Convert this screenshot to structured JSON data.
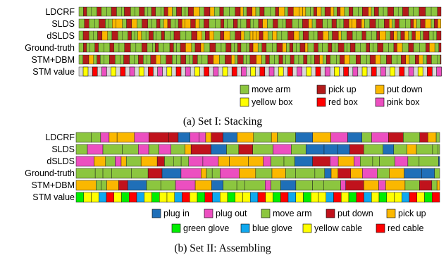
{
  "chart_data": [
    {
      "type": "heatmap",
      "caption": "(a) Set I: Stacking",
      "rows": [
        "LDCRF",
        "SLDS",
        "dSLDS",
        "Ground-truth",
        "STM+DBM",
        "STM value"
      ],
      "legend": [
        {
          "key": "move_arm",
          "label": "move arm",
          "color": "#8cc63f"
        },
        {
          "key": "pick_up",
          "label": "pick up",
          "color": "#b31b1b"
        },
        {
          "key": "put_down",
          "label": "put down",
          "color": "#fbb800"
        },
        {
          "key": "yellow_box",
          "label": "yellow box",
          "color": "#ffff00"
        },
        {
          "key": "red_box",
          "label": "red box",
          "color": "#ff0000"
        },
        {
          "key": "pink_box",
          "label": "pink box",
          "color": "#ec4fc0"
        }
      ],
      "stm_background": "#d9d9d9",
      "stm_pattern": [
        "yellow_box",
        "red_box",
        "pink_box"
      ]
    },
    {
      "type": "heatmap",
      "caption": "(b) Set II: Assembling",
      "rows": [
        "LDCRF",
        "SLDS",
        "dSLDS",
        "Ground-truth",
        "STM+DBM",
        "STM value"
      ],
      "legend": [
        {
          "key": "plug_in",
          "label": "plug in",
          "color": "#1f6fb8"
        },
        {
          "key": "plug_out",
          "label": "plug out",
          "color": "#ec4fc0"
        },
        {
          "key": "move_arm",
          "label": "move arm",
          "color": "#8cc63f"
        },
        {
          "key": "put_down",
          "label": "put down",
          "color": "#c0121c"
        },
        {
          "key": "pick_up",
          "label": "pick up",
          "color": "#fbb800"
        },
        {
          "key": "green_glove",
          "label": "green glove",
          "color": "#00ee00"
        },
        {
          "key": "blue_glove",
          "label": "blue glove",
          "color": "#10a8ee"
        },
        {
          "key": "yellow_cable",
          "label": "yellow cable",
          "color": "#ffff00"
        },
        {
          "key": "red_cable",
          "label": "red cable",
          "color": "#ff0000"
        }
      ],
      "stm_pattern": [
        "green_glove",
        "yellow_cable",
        "yellow_cable",
        "blue_glove",
        "red_cable",
        "yellow_cable",
        "green_glove",
        "red_cable",
        "blue_glove",
        "yellow_cable"
      ]
    }
  ]
}
